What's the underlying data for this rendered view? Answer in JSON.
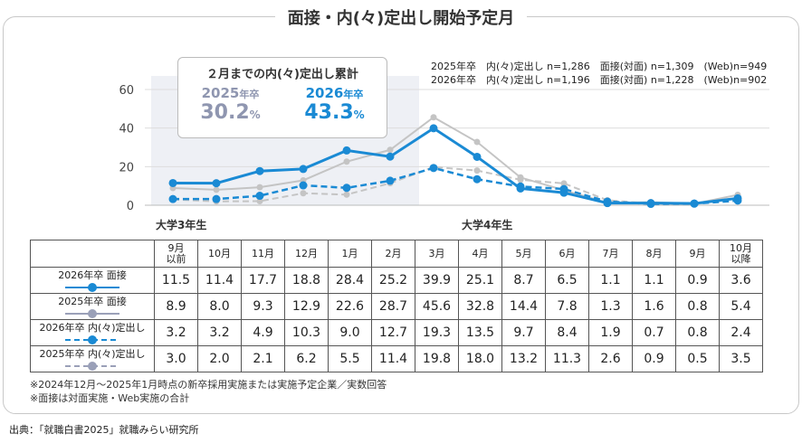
{
  "title": "面接・内(々)定出し開始予定月",
  "summary_box": {
    "heading": "２月までの内(々)定出し累計",
    "y2025": "2025",
    "y2026": "2026",
    "suffix": "年卒",
    "p2025": "30.2",
    "p2026": "43.3",
    "pct": "%"
  },
  "notes": [
    "2025年卒　内(々)定出し n=1,286　面接(対面) n=1,309　(Web)n=949",
    "2026年卒　内(々)定出し n=1,196　面接(対面) n=1,228　(Web)n=902"
  ],
  "period_labels": [
    "大学3年生",
    "大学4年生"
  ],
  "footnotes": [
    "※2024年12月～2025年1月時点の新卒採用実施または実施予定企業／実数回答",
    "※面接は対面実施・Web実施の合計"
  ],
  "source": "出典：「就職白書2025」就職みらい研究所",
  "chart_data": {
    "type": "line",
    "categories": [
      "9月以前",
      "10月",
      "11月",
      "12月",
      "1月",
      "2月",
      "3月",
      "4月",
      "5月",
      "6月",
      "7月",
      "8月",
      "9月",
      "10月以降"
    ],
    "ylim": [
      0,
      60
    ],
    "yticks": [
      0,
      20,
      40,
      60
    ],
    "grid": true,
    "series": [
      {
        "name": "2026年卒 面接",
        "color": "#1a8ad4",
        "dash": false,
        "values": [
          11.5,
          11.4,
          17.7,
          18.8,
          28.4,
          25.2,
          39.9,
          25.1,
          8.7,
          6.5,
          1.1,
          1.1,
          0.9,
          3.6
        ]
      },
      {
        "name": "2025年卒 面接",
        "color": "#c4c4c4",
        "legend_color": "#9aa0b8",
        "dash": false,
        "values": [
          8.9,
          8.0,
          9.3,
          12.9,
          22.6,
          28.7,
          45.6,
          32.8,
          14.4,
          7.8,
          1.3,
          1.6,
          0.8,
          5.4
        ]
      },
      {
        "name": "2026年卒 内(々)定出し",
        "color": "#1a8ad4",
        "dash": true,
        "values": [
          3.2,
          3.2,
          4.9,
          10.3,
          9.0,
          12.7,
          19.3,
          13.5,
          9.7,
          8.4,
          1.9,
          0.7,
          0.8,
          2.4
        ]
      },
      {
        "name": "2025年卒 内(々)定出し",
        "color": "#c4c4c4",
        "legend_color": "#9aa0b8",
        "dash": true,
        "values": [
          3.0,
          2.0,
          2.1,
          6.2,
          5.5,
          11.4,
          19.8,
          18.0,
          13.2,
          11.3,
          2.6,
          0.9,
          0.5,
          3.5
        ]
      }
    ]
  }
}
